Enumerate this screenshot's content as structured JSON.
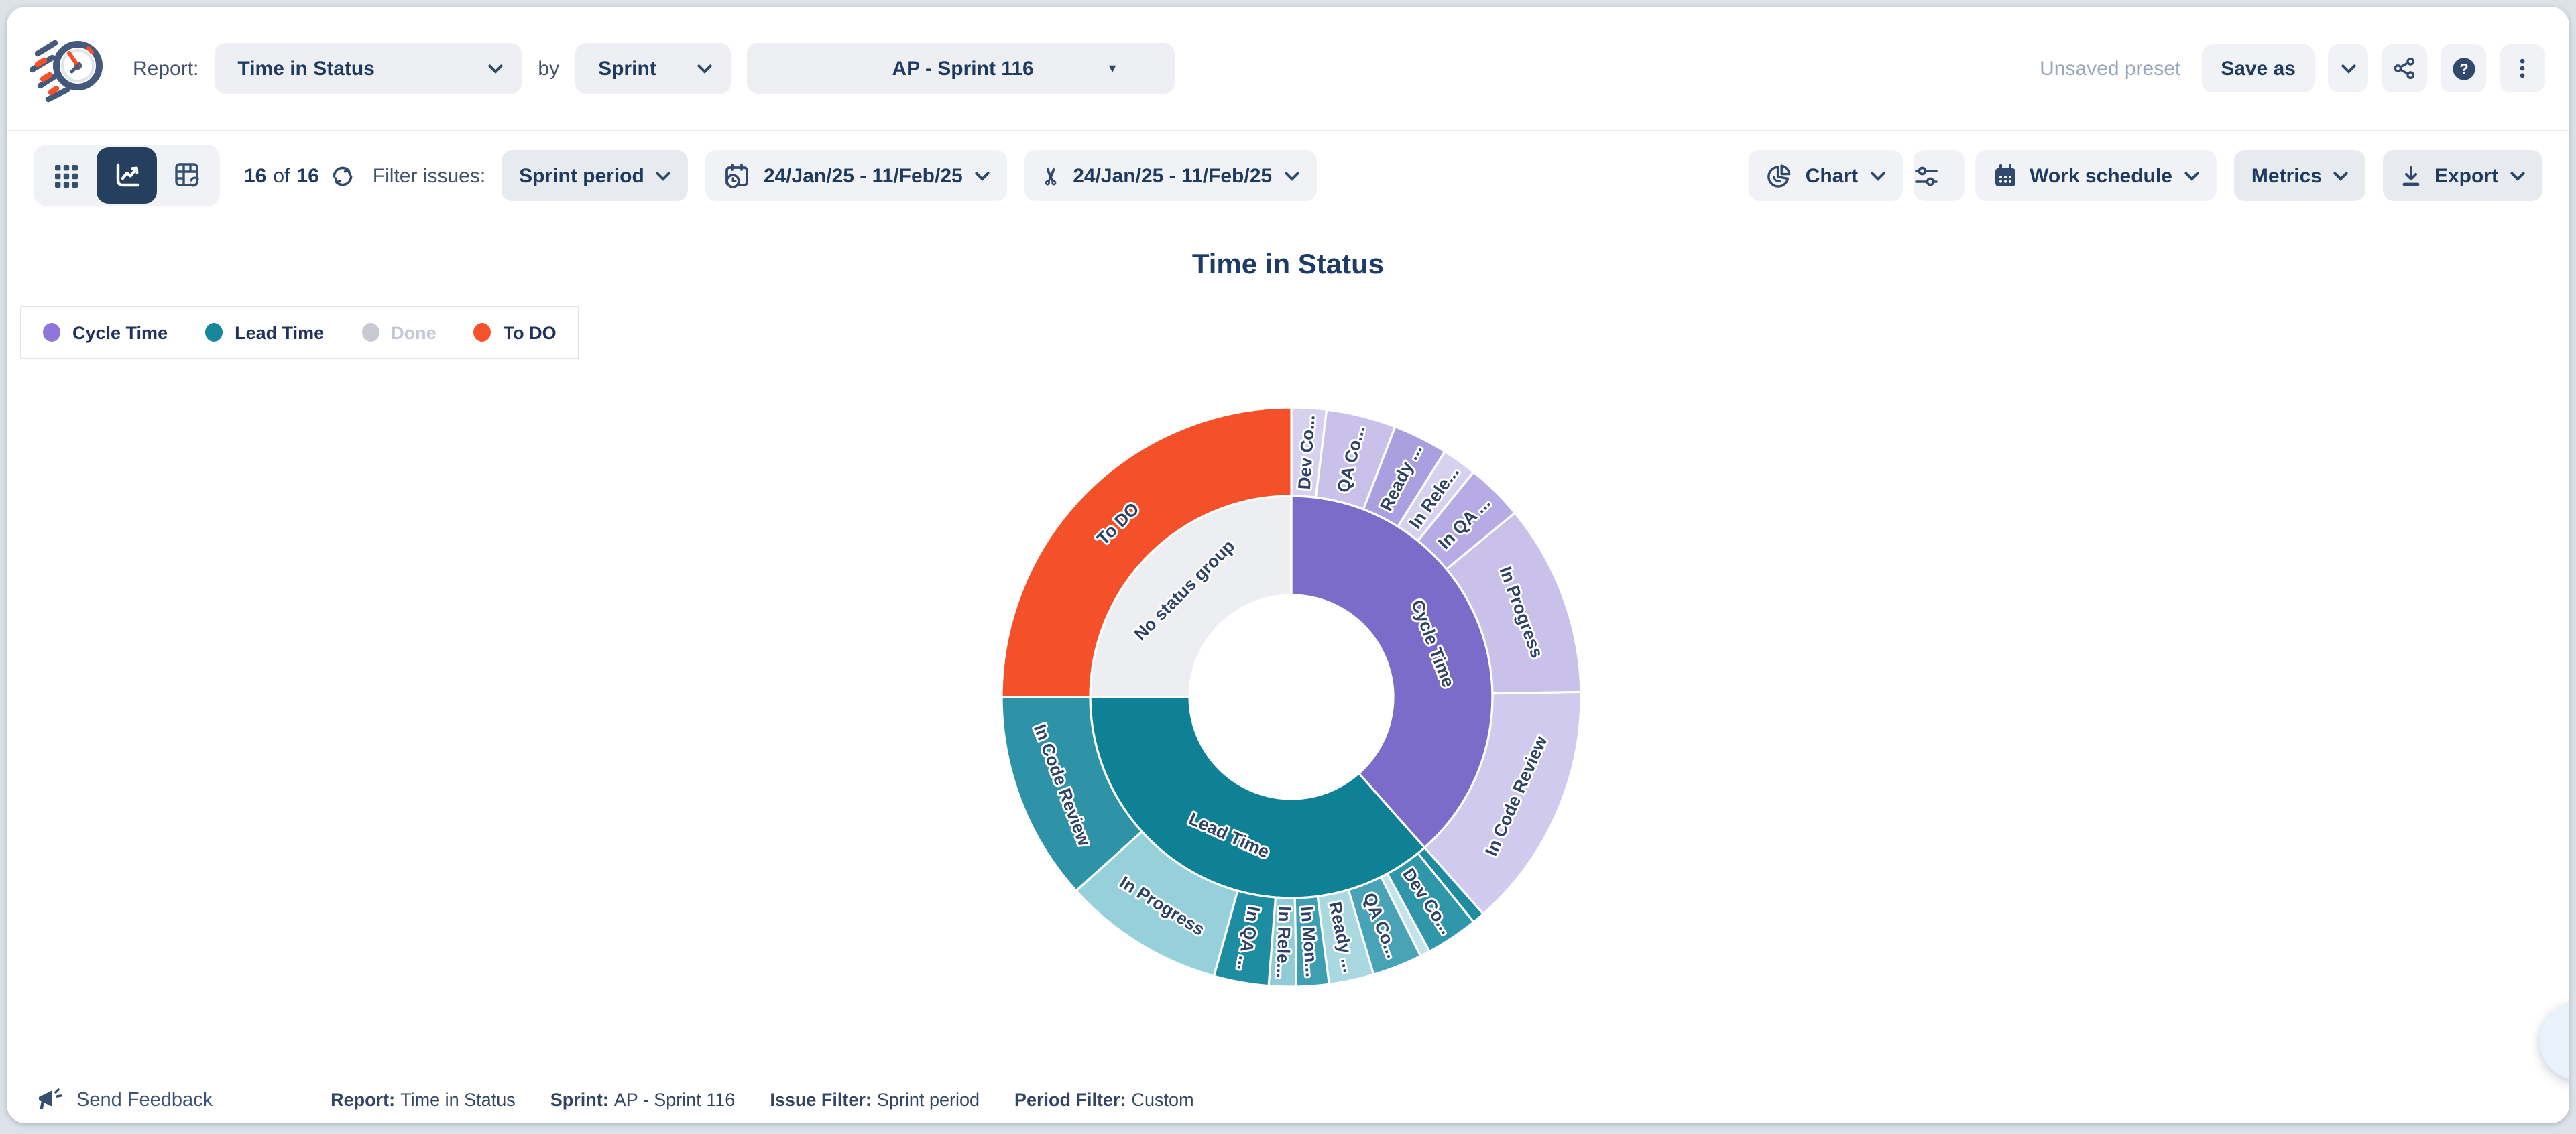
{
  "header": {
    "report_label": "Report:",
    "report_value": "Time in Status",
    "by_label": "by",
    "group_by_value": "Sprint",
    "sprint_value": "AP - Sprint 116",
    "preset_status": "Unsaved preset",
    "save_as_label": "Save as"
  },
  "toolbar": {
    "issues_count": "16",
    "of_label": "of",
    "issues_total": "16",
    "filter_label": "Filter issues:",
    "issue_filter_value": "Sprint period",
    "sprint_period_range": "24/Jan/25 - 11/Feb/25",
    "trim_period_range": "24/Jan/25 - 11/Feb/25",
    "chart_label": "Chart",
    "work_schedule_label": "Work schedule",
    "metrics_label": "Metrics",
    "export_label": "Export"
  },
  "legend": {
    "items": [
      {
        "label": "Cycle Time",
        "color": "#8f76d8",
        "muted": false
      },
      {
        "label": "Lead Time",
        "color": "#17879b",
        "muted": false
      },
      {
        "label": "Done",
        "color": "#c7cbd1",
        "muted": true
      },
      {
        "label": "To DO",
        "color": "#f4512c",
        "muted": false
      }
    ]
  },
  "chart_title": "Time in Status",
  "chart_data": {
    "type": "sunburst",
    "title": "Time in Status",
    "angle_unit": "degrees clockwise from 12 o'clock; angular span encodes share of time",
    "rings": [
      {
        "name": "status-groups",
        "inner_radius": 76,
        "outer_radius": 150,
        "segments": [
          {
            "label": "Cycle Time",
            "start": 0,
            "end": 138.5,
            "color": "#7b6cca"
          },
          {
            "label": "Lead Time",
            "start": 138.5,
            "end": 270,
            "color": "#0e8196"
          },
          {
            "label": "No status group",
            "start": 270,
            "end": 360,
            "color": "#eceef2"
          }
        ]
      },
      {
        "name": "statuses",
        "inner_radius": 150,
        "outer_radius": 216,
        "segments": [
          {
            "label": "Dev Co...",
            "start": 0,
            "end": 7,
            "color": "#d7d1f0",
            "parent": "Cycle Time"
          },
          {
            "label": "QA Co...",
            "start": 7,
            "end": 21,
            "color": "#c9c1ea",
            "parent": "Cycle Time"
          },
          {
            "label": "Ready ...",
            "start": 21,
            "end": 32,
            "color": "#aaa0df",
            "parent": "Cycle Time"
          },
          {
            "label": "In Rele...",
            "start": 32,
            "end": 39,
            "color": "#d7d1f0",
            "parent": "Cycle Time"
          },
          {
            "label": "In QA ...",
            "start": 39,
            "end": 50.5,
            "color": "#b6abe4",
            "parent": "Cycle Time"
          },
          {
            "label": "In Progress",
            "start": 50.5,
            "end": 89,
            "color": "#c9c1ea",
            "parent": "Cycle Time"
          },
          {
            "label": "In Code Review",
            "start": 89,
            "end": 138.5,
            "color": "#d0caee",
            "parent": "Cycle Time"
          },
          {
            "label": "",
            "start": 138.5,
            "end": 141,
            "color": "#1f8ba0",
            "parent": "Lead Time"
          },
          {
            "label": "Dev Co...",
            "start": 141,
            "end": 151.5,
            "color": "#3097ab",
            "parent": "Lead Time"
          },
          {
            "label": "",
            "start": 151.5,
            "end": 153.5,
            "color": "#c2e3e9",
            "parent": "Lead Time"
          },
          {
            "label": "QA Co...",
            "start": 153.5,
            "end": 163.5,
            "color": "#47a3b5",
            "parent": "Lead Time"
          },
          {
            "label": "Ready ...",
            "start": 163.5,
            "end": 172.5,
            "color": "#a9d8e0",
            "parent": "Lead Time"
          },
          {
            "label": "In Mon...",
            "start": 172.5,
            "end": 179,
            "color": "#3f9fb2",
            "parent": "Lead Time"
          },
          {
            "label": "In Rele...",
            "start": 179,
            "end": 184.5,
            "color": "#8fccd7",
            "parent": "Lead Time"
          },
          {
            "label": "In QA ...",
            "start": 184.5,
            "end": 195.5,
            "color": "#1e8da2",
            "parent": "Lead Time"
          },
          {
            "label": "In Progress",
            "start": 195.5,
            "end": 228,
            "color": "#96d0da",
            "parent": "Lead Time"
          },
          {
            "label": "In Code Review",
            "start": 228,
            "end": 270,
            "color": "#2f93a7",
            "parent": "Lead Time"
          },
          {
            "label": "To DO",
            "start": 270,
            "end": 360,
            "color": "#f4502a",
            "parent": "No status group"
          }
        ]
      }
    ],
    "label_color": "#2e4166",
    "segment_gap_color": "#ffffff"
  },
  "footer": {
    "send_feedback": "Send Feedback",
    "meta": [
      {
        "label": "Report:",
        "value": "Time in Status"
      },
      {
        "label": "Sprint:",
        "value": "AP - Sprint 116"
      },
      {
        "label": "Issue Filter:",
        "value": "Sprint period"
      },
      {
        "label": "Period Filter:",
        "value": "Custom"
      }
    ]
  },
  "icons": {
    "app-logo": "stopwatch with speed lines",
    "grid-view-icon": "3x3 dots",
    "chart-view-icon": "line chart (selected)",
    "pivot-view-icon": "table with refresh arrows",
    "refresh-icon": "circular arrows",
    "calendar-clock-icon": "calendar with clock",
    "scissors-icon": "✂",
    "pie-chart-icon": "pie",
    "sliders-icon": "settings sliders",
    "calendar-icon": "calendar",
    "download-icon": "download tray",
    "share-icon": "share nodes",
    "help-icon": "? in circle",
    "kebab-menu-icon": "⋮",
    "megaphone-icon": "megaphone",
    "chevron-down-icon": "v",
    "triangle-down-icon": "▼"
  }
}
